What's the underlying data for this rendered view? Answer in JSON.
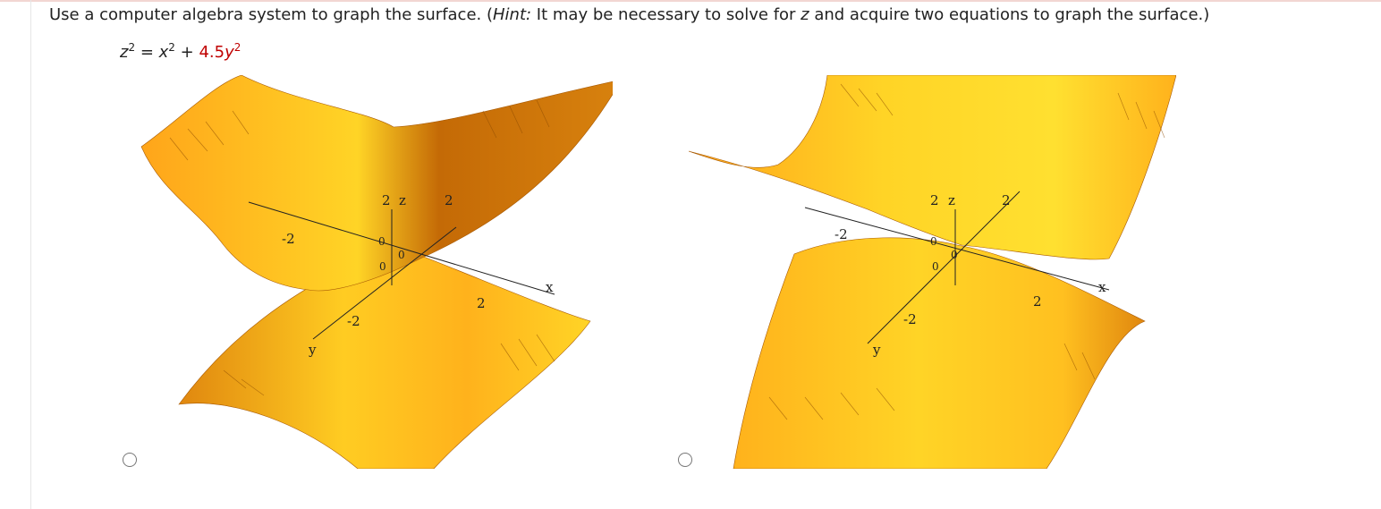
{
  "question": {
    "prefix": "Use a computer algebra system to graph the surface. (",
    "hint_label": "Hint:",
    "hint_text": " It may be necessary to solve for ",
    "z_var": "z",
    "suffix": " and acquire two equations to graph the surface.)"
  },
  "equation": {
    "lhs_var": "z",
    "exp1": "2",
    "equals": " = ",
    "x_var": "x",
    "exp2": "2",
    "plus": " + ",
    "coefficient": "4.5",
    "y_var": "y",
    "exp3": "2"
  },
  "options": [
    {
      "axis_z": "z",
      "axis_x": "x",
      "axis_y": "y",
      "tick_z_top": "2",
      "tick_z_zero": "0",
      "tick_x_neg": "-2",
      "tick_x_pos": "2",
      "tick_y_neg": "-2",
      "tick_y_pos": "2",
      "tick_origin": "0",
      "tick_origin2": "0"
    },
    {
      "axis_z": "z",
      "axis_x": "x",
      "axis_y": "y",
      "tick_z_top": "2",
      "tick_z_zero": "0",
      "tick_x_neg": "-2",
      "tick_x_pos": "2",
      "tick_y_neg": "-2",
      "tick_y_pos": "2",
      "tick_origin": "0",
      "tick_origin2": "0"
    }
  ],
  "colors": {
    "surface_light": "#ffd426",
    "surface_mid": "#ffa51a",
    "surface_dark": "#c46a06",
    "coefficient": "#c00000"
  }
}
